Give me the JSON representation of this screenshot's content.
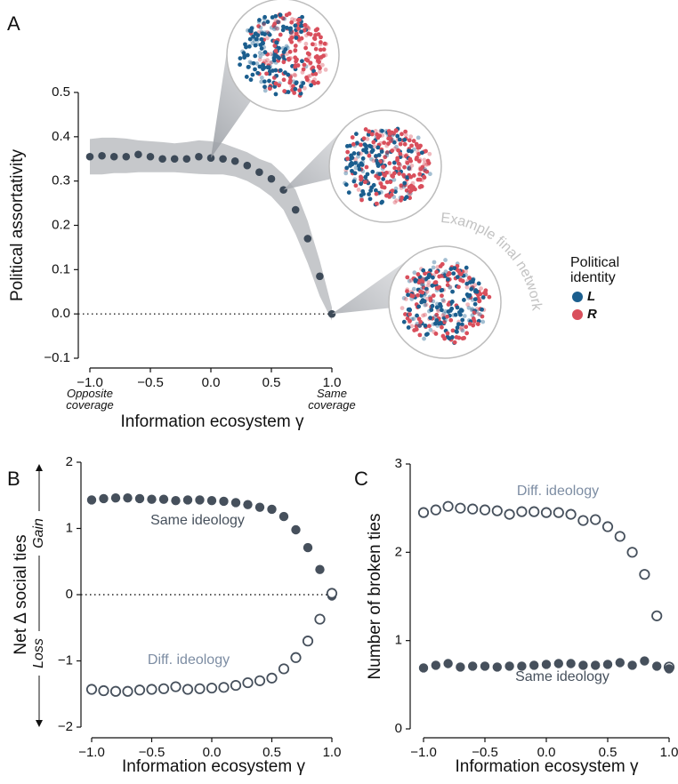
{
  "chart_data": [
    {
      "type": "scatter",
      "panel_label": "A",
      "xlabel": "Information ecosystem γ",
      "ylabel": "Political assortativity",
      "x": [
        -1.0,
        -0.9,
        -0.8,
        -0.7,
        -0.6,
        -0.5,
        -0.4,
        -0.3,
        -0.2,
        -0.1,
        0.0,
        0.1,
        0.2,
        0.3,
        0.4,
        0.5,
        0.6,
        0.7,
        0.8,
        0.9,
        1.0
      ],
      "series": [
        {
          "color": "#3d4a58",
          "filled": true,
          "values": [
            0.355,
            0.357,
            0.355,
            0.355,
            0.36,
            0.355,
            0.35,
            0.35,
            0.35,
            0.355,
            0.352,
            0.35,
            0.345,
            0.335,
            0.32,
            0.305,
            0.28,
            0.235,
            0.17,
            0.085,
            0.0
          ]
        }
      ],
      "band": {
        "color": "#c6c8cb",
        "lower": [
          0.315,
          0.315,
          0.318,
          0.318,
          0.32,
          0.32,
          0.32,
          0.32,
          0.318,
          0.316,
          0.315,
          0.315,
          0.31,
          0.3,
          0.285,
          0.265,
          0.235,
          0.18,
          0.115,
          0.04,
          -0.015
        ],
        "upper": [
          0.395,
          0.398,
          0.398,
          0.396,
          0.392,
          0.39,
          0.388,
          0.385,
          0.388,
          0.392,
          0.39,
          0.385,
          0.375,
          0.365,
          0.35,
          0.34,
          0.315,
          0.28,
          0.21,
          0.12,
          0.015
        ]
      },
      "hline": 0,
      "xlim": [
        -1,
        1
      ],
      "ylim": [
        -0.1,
        0.5
      ],
      "xticks": [
        {
          "value": -1,
          "label": "−1.0"
        },
        {
          "value": -0.5,
          "label": "−0.5"
        },
        {
          "value": 0,
          "label": "0.0"
        },
        0.5,
        {
          "value": 1,
          "label": "1.0"
        }
      ],
      "yticks": [
        {
          "value": -0.1,
          "label": "−0.1"
        },
        {
          "value": 0,
          "label": "0.0"
        },
        0.1,
        0.2,
        0.3,
        0.4,
        0.5
      ],
      "annotations": [
        "Opposite coverage",
        "Same coverage",
        "Example final network"
      ],
      "legend": {
        "title": "Political identity",
        "entries": [
          {
            "name": "L",
            "color": "#1b5e8e"
          },
          {
            "name": "R",
            "color": "#d94f5c"
          }
        ]
      }
    },
    {
      "type": "scatter",
      "panel_label": "B",
      "xlabel": "Information ecosystem γ",
      "ylabel": "Net Δ social ties",
      "x": [
        -1.0,
        -0.9,
        -0.8,
        -0.7,
        -0.6,
        -0.5,
        -0.4,
        -0.3,
        -0.2,
        -0.1,
        0.0,
        0.1,
        0.2,
        0.3,
        0.4,
        0.5,
        0.6,
        0.7,
        0.8,
        0.9,
        1.0
      ],
      "series": [
        {
          "name": "Same ideology",
          "color": "#46505c",
          "filled": true,
          "values": [
            1.43,
            1.45,
            1.46,
            1.46,
            1.45,
            1.44,
            1.44,
            1.42,
            1.43,
            1.43,
            1.42,
            1.41,
            1.39,
            1.36,
            1.32,
            1.29,
            1.18,
            0.98,
            0.71,
            0.38,
            -0.02
          ]
        },
        {
          "name": "Diff. ideology",
          "color": "#46505c",
          "label_color": "#7d8da3",
          "filled": false,
          "values": [
            -1.43,
            -1.45,
            -1.46,
            -1.46,
            -1.44,
            -1.43,
            -1.42,
            -1.39,
            -1.43,
            -1.42,
            -1.41,
            -1.4,
            -1.37,
            -1.33,
            -1.3,
            -1.26,
            -1.12,
            -0.95,
            -0.7,
            -0.37,
            0.02
          ]
        }
      ],
      "hline": 0,
      "xlim": [
        -1,
        1
      ],
      "ylim": [
        -2,
        2
      ],
      "xticks": [
        {
          "value": -1,
          "label": "−1.0"
        },
        {
          "value": -0.5,
          "label": "−0.5"
        },
        {
          "value": 0,
          "label": "0.0"
        },
        0.5,
        {
          "value": 1,
          "label": "1.0"
        }
      ],
      "yticks": [
        {
          "value": -2,
          "label": "−2"
        },
        {
          "value": -1,
          "label": "−1"
        },
        0,
        1,
        2
      ],
      "annotations": [
        "Gain",
        "Loss"
      ]
    },
    {
      "type": "scatter",
      "panel_label": "C",
      "xlabel": "Information ecosystem γ",
      "ylabel": "Number of broken ties",
      "x": [
        -1.0,
        -0.9,
        -0.8,
        -0.7,
        -0.6,
        -0.5,
        -0.4,
        -0.3,
        -0.2,
        -0.1,
        0.0,
        0.1,
        0.2,
        0.3,
        0.4,
        0.5,
        0.6,
        0.7,
        0.8,
        0.9,
        1.0
      ],
      "series": [
        {
          "name": "Diff. ideology",
          "color": "#46505c",
          "label_color": "#7d8da3",
          "filled": false,
          "values": [
            2.45,
            2.48,
            2.52,
            2.5,
            2.49,
            2.48,
            2.47,
            2.43,
            2.46,
            2.46,
            2.45,
            2.45,
            2.43,
            2.36,
            2.37,
            2.29,
            2.18,
            2.0,
            1.75,
            1.28,
            0.7
          ]
        },
        {
          "name": "Same ideology",
          "color": "#46505c",
          "filled": true,
          "values": [
            0.69,
            0.72,
            0.74,
            0.7,
            0.71,
            0.71,
            0.7,
            0.71,
            0.71,
            0.72,
            0.73,
            0.74,
            0.74,
            0.72,
            0.72,
            0.73,
            0.75,
            0.72,
            0.77,
            0.71,
            0.68
          ]
        }
      ],
      "xlim": [
        -1,
        1
      ],
      "ylim": [
        0,
        3
      ],
      "xticks": [
        {
          "value": -1,
          "label": "−1.0"
        },
        {
          "value": -0.5,
          "label": "−0.5"
        },
        {
          "value": 0,
          "label": "0.0"
        },
        0.5,
        {
          "value": 1,
          "label": "1.0"
        }
      ],
      "yticks": [
        0,
        1,
        2,
        3
      ]
    }
  ]
}
